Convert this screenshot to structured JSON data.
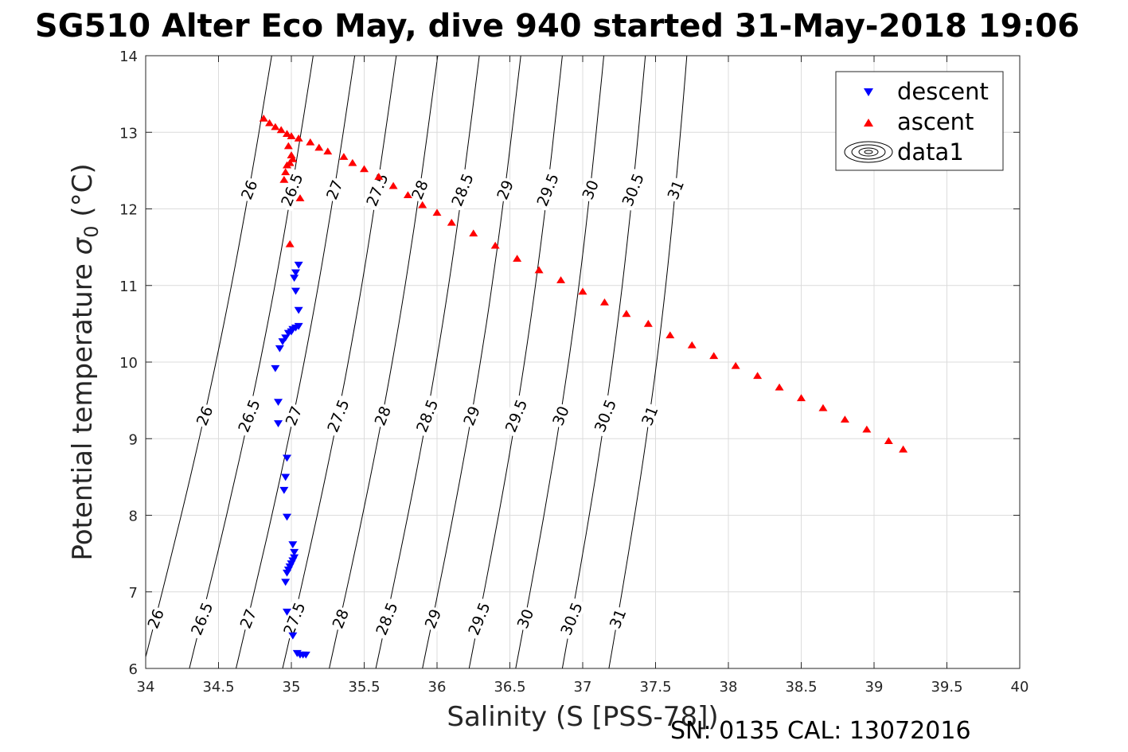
{
  "chart_data": {
    "type": "scatter",
    "title": "SG510 Alter Eco May, dive 940 started 31-May-2018 19:06",
    "xlabel": "Salinity (S [PSS-78])",
    "ylabel_text": "Potential temperature ",
    "ylabel_sigma": "σ",
    "ylabel_sub": "0",
    "ylabel_unit": " (°C)",
    "footer": "SN: 0135  CAL: 13072016",
    "xlim": [
      34,
      40
    ],
    "ylim": [
      6,
      14
    ],
    "xticks": [
      34,
      34.5,
      35,
      35.5,
      36,
      36.5,
      37,
      37.5,
      38,
      38.5,
      39,
      39.5,
      40
    ],
    "xtick_labels": [
      "34",
      "34.5",
      "35",
      "35.5",
      "36",
      "36.5",
      "37",
      "37.5",
      "38",
      "38.5",
      "39",
      "39.5",
      "40"
    ],
    "yticks": [
      6,
      7,
      8,
      9,
      10,
      11,
      12,
      13,
      14
    ],
    "ytick_labels": [
      "6",
      "7",
      "8",
      "9",
      "10",
      "11",
      "12",
      "13",
      "14"
    ],
    "grid": true,
    "legend_position": "top-right",
    "legend": [
      {
        "label": "descent",
        "marker": "triangle-down",
        "color": "#0000ff"
      },
      {
        "label": "ascent",
        "marker": "triangle-up",
        "color": "#ff0000"
      },
      {
        "label": "data1",
        "marker": "contour",
        "color": "#000000"
      }
    ],
    "series": [
      {
        "name": "descent",
        "color": "#0000ff",
        "marker": "triangle-down",
        "points": [
          [
            35.05,
            11.27
          ],
          [
            35.03,
            11.17
          ],
          [
            35.02,
            11.1
          ],
          [
            35.03,
            10.93
          ],
          [
            35.05,
            10.68
          ],
          [
            35.05,
            10.47
          ],
          [
            35.03,
            10.45
          ],
          [
            35.01,
            10.43
          ],
          [
            35.0,
            10.4
          ],
          [
            34.98,
            10.38
          ],
          [
            34.96,
            10.32
          ],
          [
            34.94,
            10.27
          ],
          [
            34.92,
            10.18
          ],
          [
            34.89,
            9.92
          ],
          [
            34.91,
            9.48
          ],
          [
            34.91,
            9.2
          ],
          [
            34.97,
            8.75
          ],
          [
            34.96,
            8.5
          ],
          [
            34.95,
            8.33
          ],
          [
            34.97,
            7.98
          ],
          [
            35.01,
            7.62
          ],
          [
            35.02,
            7.52
          ],
          [
            35.02,
            7.45
          ],
          [
            35.01,
            7.41
          ],
          [
            35.0,
            7.37
          ],
          [
            34.99,
            7.33
          ],
          [
            34.98,
            7.29
          ],
          [
            34.97,
            7.25
          ],
          [
            34.96,
            7.13
          ],
          [
            34.97,
            6.74
          ],
          [
            35.01,
            6.43
          ],
          [
            35.04,
            6.2
          ],
          [
            35.06,
            6.18
          ],
          [
            35.08,
            6.18
          ],
          [
            35.1,
            6.18
          ]
        ]
      },
      {
        "name": "ascent",
        "color": "#ff0000",
        "marker": "triangle-up",
        "points": [
          [
            34.81,
            13.18
          ],
          [
            34.85,
            13.12
          ],
          [
            34.89,
            13.07
          ],
          [
            34.93,
            13.03
          ],
          [
            34.97,
            12.98
          ],
          [
            35.0,
            12.7
          ],
          [
            35.01,
            12.65
          ],
          [
            34.99,
            12.6
          ],
          [
            34.97,
            12.57
          ],
          [
            34.96,
            12.48
          ],
          [
            34.95,
            12.38
          ],
          [
            34.98,
            12.82
          ],
          [
            35.06,
            12.14
          ],
          [
            34.99,
            11.54
          ],
          [
            35.0,
            12.95
          ],
          [
            35.05,
            12.92
          ],
          [
            35.13,
            12.87
          ],
          [
            35.19,
            12.8
          ],
          [
            35.25,
            12.75
          ],
          [
            35.36,
            12.68
          ],
          [
            35.42,
            12.6
          ],
          [
            35.5,
            12.52
          ],
          [
            35.6,
            12.42
          ],
          [
            35.7,
            12.3
          ],
          [
            35.8,
            12.18
          ],
          [
            35.9,
            12.05
          ],
          [
            36.0,
            11.95
          ],
          [
            36.1,
            11.82
          ],
          [
            36.25,
            11.68
          ],
          [
            36.4,
            11.52
          ],
          [
            36.55,
            11.35
          ],
          [
            36.7,
            11.2
          ],
          [
            36.85,
            11.07
          ],
          [
            37.0,
            10.92
          ],
          [
            37.15,
            10.78
          ],
          [
            37.3,
            10.63
          ],
          [
            37.45,
            10.5
          ],
          [
            37.6,
            10.35
          ],
          [
            37.75,
            10.22
          ],
          [
            37.9,
            10.08
          ],
          [
            38.05,
            9.95
          ],
          [
            38.2,
            9.82
          ],
          [
            38.35,
            9.67
          ],
          [
            38.5,
            9.53
          ],
          [
            38.65,
            9.4
          ],
          [
            38.8,
            9.25
          ],
          [
            38.95,
            9.12
          ],
          [
            39.1,
            8.97
          ],
          [
            39.2,
            8.86
          ]
        ]
      }
    ],
    "contour_levels": [
      "26",
      "26.5",
      "27",
      "27.5",
      "28",
      "28.5",
      "29",
      "29.5",
      "30",
      "30.5",
      "31"
    ]
  }
}
